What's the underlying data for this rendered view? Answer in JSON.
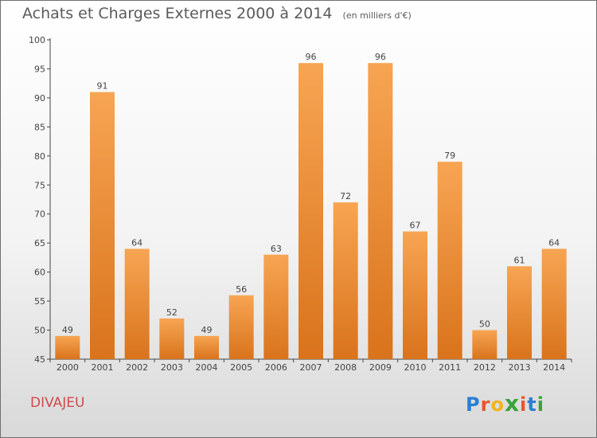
{
  "header": {
    "title": "Achats et Charges Externes 2000 à 2014",
    "unit": "(en milliers d'€)"
  },
  "footer": {
    "place": "DIVAJEU",
    "logo_letters": [
      "P",
      "r",
      "o",
      "x",
      "i",
      "t",
      "i"
    ],
    "logo_colors": [
      "#2a7fd4",
      "#e8552b",
      "#f2b31e",
      "#3aa33a",
      "#e8552b",
      "#2a7fd4",
      "#3aa33a"
    ]
  },
  "chart_data": {
    "type": "bar",
    "title": "Achats et Charges Externes 2000 à 2014",
    "xlabel": "",
    "ylabel": "",
    "categories": [
      "2000",
      "2001",
      "2002",
      "2003",
      "2004",
      "2005",
      "2006",
      "2007",
      "2008",
      "2009",
      "2010",
      "2011",
      "2012",
      "2013",
      "2014"
    ],
    "values": [
      49,
      91,
      64,
      52,
      49,
      56,
      63,
      96,
      72,
      96,
      67,
      79,
      50,
      61,
      64
    ],
    "ylim": [
      45,
      100
    ],
    "yticks": [
      45,
      50,
      55,
      60,
      65,
      70,
      75,
      80,
      85,
      90,
      95,
      100
    ],
    "grid": false,
    "bar_color_top": "#f7a553",
    "bar_color_bottom": "#d9731c"
  }
}
